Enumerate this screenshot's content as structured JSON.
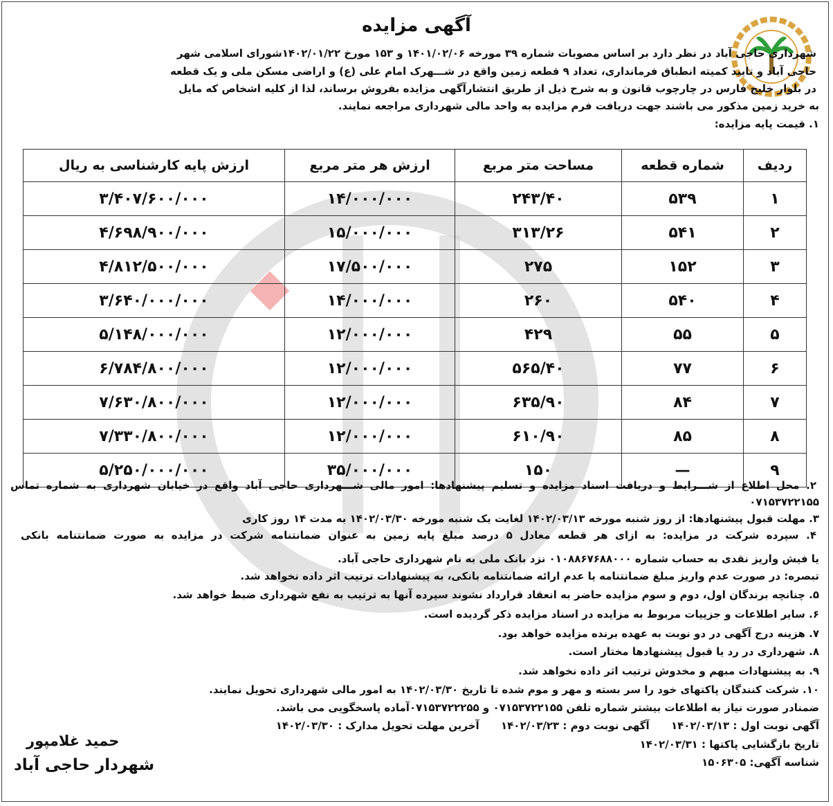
{
  "title": "آگهی مزایده",
  "intro_lines": [
    "شهرداری حاجی آباد در نظر دارد بر اساس مصوبات شماره ۳۹ مورخه ۱۴۰۱/۰۲/۰۶ و ۱۵۳ مورخ ۱۴۰۲/۰۱/۲۲شورای اسلامی شهر",
    "حاجی آباد و تایید کمیته انطباق فرمانداری، تعداد ۹ قطعه زمین واقع در شـــهرک امام علی (ع) و اراضی مسکن ملی و یک قطعه",
    "در بلوار خلیج فارس در چارچوب قانون و به شرح ذیل از طریق انتشارآگهی مزایده بفروش برساند، لذا از کلیه اشخاص که مایل",
    "به خرید زمین مذکور می باشند جهت دریافت فرم مزایده به واحد مالی شهرداری مراجعه نمایند.",
    "۱. قیمت پایه مزایده:"
  ],
  "table": {
    "headers": [
      "ردیف",
      "شماره قطعه",
      "مساحت متر مربع",
      "ارزش هر متر مربع",
      "ارزش پایه کارشناسی به ریال"
    ],
    "rows": [
      [
        "۱",
        "۵۳۹",
        "۲۴۳/۴۰",
        "۱۴/۰۰۰/۰۰۰",
        "۳/۴۰۷/۶۰۰/۰۰۰"
      ],
      [
        "۲",
        "۵۴۱",
        "۳۱۳/۲۶",
        "۱۵/۰۰۰/۰۰۰",
        "۴/۶۹۸/۹۰۰/۰۰۰"
      ],
      [
        "۳",
        "۱۵۲",
        "۲۷۵",
        "۱۷/۵۰۰/۰۰۰",
        "۴/۸۱۲/۵۰۰/۰۰۰"
      ],
      [
        "۴",
        "۵۴۰",
        "۲۶۰",
        "۱۴/۰۰۰/۰۰۰",
        "۳/۶۴۰/۰۰۰/۰۰۰"
      ],
      [
        "۵",
        "۵۵",
        "۴۲۹",
        "۱۲/۰۰۰/۰۰۰",
        "۵/۱۴۸/۰۰۰/۰۰۰"
      ],
      [
        "۶",
        "۷۷",
        "۵۶۵/۴۰",
        "۱۲/۰۰۰/۰۰۰",
        "۶/۷۸۴/۸۰۰/۰۰۰"
      ],
      [
        "۷",
        "۸۴",
        "۶۳۵/۹۰",
        "۱۲/۰۰۰/۰۰۰",
        "۷/۶۳۰/۸۰۰/۰۰۰"
      ],
      [
        "۸",
        "۸۵",
        "۶۱۰/۹۰",
        "۱۲/۰۰۰/۰۰۰",
        "۷/۳۳۰/۸۰۰/۰۰۰"
      ],
      [
        "۹",
        "—",
        "۱۵۰",
        "۳۵/۰۰۰/۰۰۰",
        "۵/۲۵۰/۰۰۰/۰۰۰"
      ]
    ]
  },
  "terms_lines": [
    "۲. محل اطلاع از شـــرایط و دریافت اسناد مزایده و تسلیم پیشنهادها: امور مالی شـــهرداری حاجی آباد واقع در خیابان شهرداری به شماره تماس",
    "۰۷۱۵۳۷۲۲۱۵۵",
    "۳. مهلت قبول پیشنهادها: از روز شنبه مورخه ۱۴۰۲/۰۳/۱۳ لغایت یک شنبه مورخه ۱۴۰۲/۰۳/۳۰ به مدت ۱۴ روز کاری",
    "۴. سپرده شرکت در مزایده: به ازای هر قطعه معادل ۵ درصد مبلغ پایه زمین به عنوان ضمانتنامه شرکت در مزایده به صورت ضمانتنامه بانکی",
    "یا فیش واریز نقدی به حساب شماره ۰۱۰۸۸۶۷۶۸۸۰۰۰ نزد بانک ملی به نام شهرداری حاجی آباد.",
    "تبصره: در صورت عدم واریز مبلغ ضمانتنامه یا عدم ارائه ضمانتنامه بانکی، به پیشنهادات ترتیب اثر داده نخواهد شد.",
    "۵. چنانچه برندگان اول، دوم و سوم مزایده حاضر به انعقاد قرارداد نشوند سپرده آنها به ترتیب به نفع شهرداری ضبط خواهد شد.",
    "۶. سایر اطلاعات و جزییات مربوط به مزایده در اسناد مزایده ذکر گردیده است.",
    "۷. هزینه درج آگهی در دو نوبت به عهده برنده مزایده خواهد بود.",
    "۸. شهرداری در رد یا قبول پیشنهادها مختار است.",
    "۹. به پیشنهادات مبهم و مخدوش ترتیب اثر داده نخواهد شد.",
    "۱۰. شرکت کنندگان پاکتهای خود را سر بسته و مهر و موم شده تا تاریخ ۱۴۰۲/۰۳/۳۰ به امور مالی شهرداری تحویل نمایند.",
    "ضمنادر صورت نیاز به اطلاعات بیشتر شماره تلفن ۰۷۱۵۳۷۲۲۱۵۵ و ۰۷۱۵۳۷۲۲۲۵۵آماده پاسخگویی می باشد.",
    "آگهی نوبت اول : ۱۴۰۲/۰۳/۱۳      آگهی نوبت دوم : ۱۴۰۲/۰۳/۲۳      آخرین مهلت تحویل مدارک : ۱۴۰۲/۰۳/۳۰",
    "تاریخ بازگشایی پاکتها : ۱۴۰۲/۰۳/۳۱",
    "شناسه آگهی: ۱۵۰۶۳۰۵"
  ],
  "signature": {
    "name": "حمید غلامپور",
    "role": "شهردار حاجی آباد"
  },
  "logo_text": "شهرداری حاجی آباد",
  "colors": {
    "watermark": "#c8c8c8",
    "watermark_accent": "#f2a0a0",
    "logo_gold": "#d9a441",
    "logo_green": "#2e9e3a"
  }
}
